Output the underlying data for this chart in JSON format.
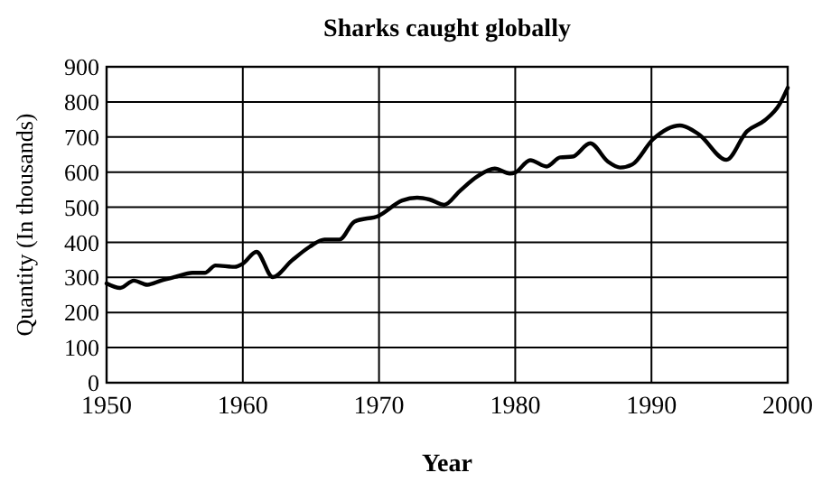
{
  "chart_data": {
    "type": "line",
    "title": "Sharks caught globally",
    "xlabel": "Year",
    "ylabel": "Quantity (In thousands)",
    "x": [
      1950,
      1951,
      1952,
      1953,
      1954,
      1955,
      1956.3,
      1957.2,
      1958,
      1959.4,
      1960,
      1961,
      1962.2,
      1963.6,
      1964.9,
      1966,
      1967.1,
      1968.2,
      1970,
      1971.7,
      1972.8,
      1973.7,
      1974.8,
      1975.9,
      1977.2,
      1978.5,
      1979.6,
      1980,
      1981.1,
      1982.3,
      1983.3,
      1984.2,
      1985.5,
      1986.8,
      1987.7,
      1988.6,
      1990.1,
      1992.1,
      1993.5,
      1995.5,
      1997,
      1998.3,
      1999.4,
      2000
    ],
    "series": [
      {
        "color": "#000000",
        "values": [
          283,
          270,
          291,
          279,
          291,
          301,
          313,
          313,
          334,
          330,
          339,
          373,
          301,
          348,
          387,
          408,
          408,
          459,
          476,
          519,
          527,
          522,
          507,
          545,
          587,
          610,
          596,
          599,
          634,
          616,
          642,
          644,
          682,
          630,
          613,
          622,
          693,
          733,
          707,
          635,
          716,
          747,
          793,
          840
        ]
      }
    ],
    "xlim": [
      1950,
      2000
    ],
    "xticks": [
      1950,
      1960,
      1970,
      1980,
      1990,
      2000
    ],
    "ylim": [
      0,
      900
    ],
    "yticks": [
      0,
      100,
      200,
      300,
      400,
      500,
      600,
      700,
      800,
      900
    ],
    "grid": true,
    "marker": "none",
    "line_style": "solid"
  }
}
